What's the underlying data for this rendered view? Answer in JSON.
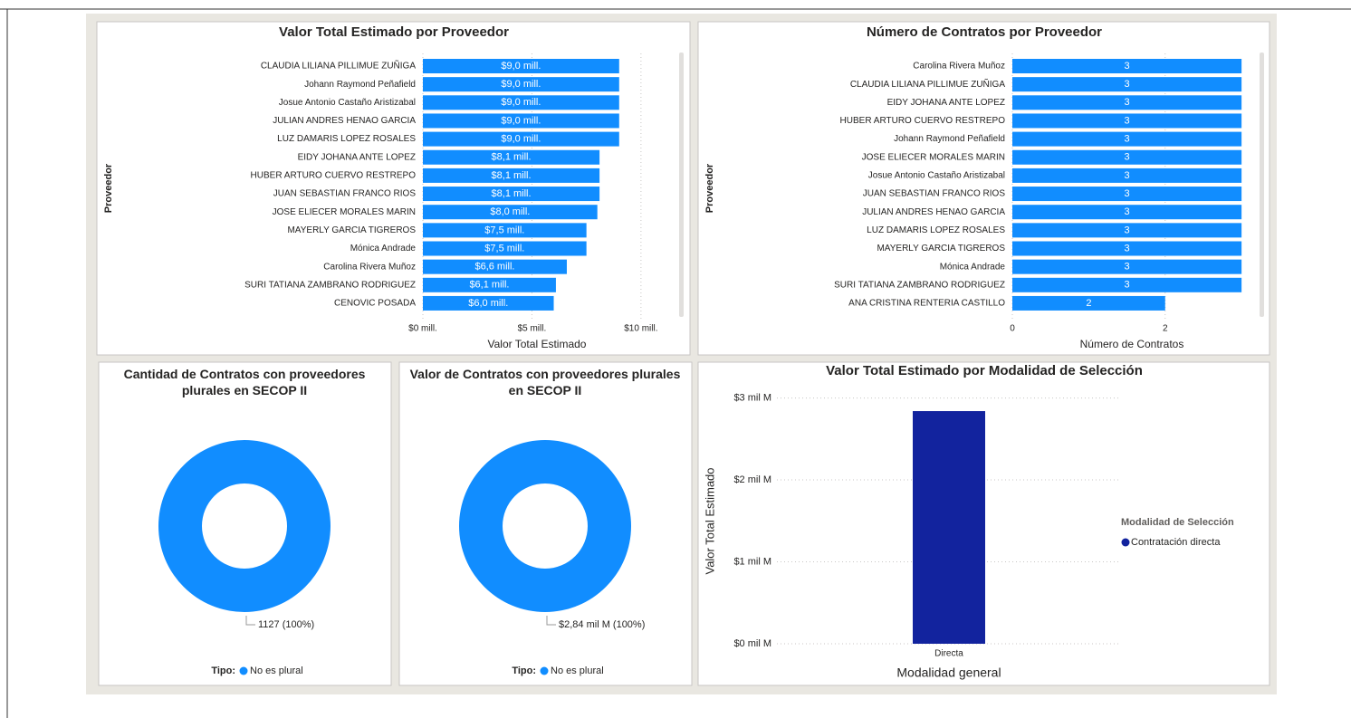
{
  "chart_data": [
    {
      "type": "bar",
      "horizontal": true,
      "title": "Valor Total Estimado por Proveedor",
      "y_label": "Proveedor",
      "x_label": "Valor Total Estimado",
      "categories": [
        "CLAUDIA LILIANA PILLIMUE ZUÑIGA",
        "Johann Raymond Peñafield",
        "Josue Antonio Castaño Aristizabal",
        "JULIAN ANDRES HENAO GARCIA",
        "LUZ DAMARIS LOPEZ ROSALES",
        "EIDY JOHANA ANTE LOPEZ",
        "HUBER ARTURO CUERVO RESTREPO",
        "JUAN SEBASTIAN FRANCO RIOS",
        "JOSE ELIECER MORALES MARIN",
        "MAYERLY GARCIA TIGREROS",
        "Mónica Andrade",
        "Carolina Rivera Muñoz",
        "SURI TATIANA ZAMBRANO RODRIGUEZ",
        "CENOVIC POSADA"
      ],
      "values": [
        9.0,
        9.0,
        9.0,
        9.0,
        9.0,
        8.1,
        8.1,
        8.1,
        8.0,
        7.5,
        7.5,
        6.6,
        6.1,
        6.0
      ],
      "value_labels": [
        "$9,0 mill.",
        "$9,0 mill.",
        "$9,0 mill.",
        "$9,0 mill.",
        "$9,0 mill.",
        "$8,1 mill.",
        "$8,1 mill.",
        "$8,1 mill.",
        "$8,0 mill.",
        "$7,5 mill.",
        "$7,5 mill.",
        "$6,6 mill.",
        "$6,1 mill.",
        "$6,0 mill."
      ],
      "color": "#118dff",
      "xlim": [
        0,
        11.5
      ],
      "xticks": [
        {
          "value": 0,
          "label": "$0 mill."
        },
        {
          "value": 5,
          "label": "$5 mill."
        },
        {
          "value": 10,
          "label": "$10 mill."
        }
      ],
      "grid": true
    },
    {
      "type": "bar",
      "horizontal": true,
      "title": "Número de Contratos por Proveedor",
      "y_label": "Proveedor",
      "x_label": "Número de Contratos",
      "categories": [
        "Carolina Rivera Muñoz",
        "CLAUDIA LILIANA PILLIMUE ZUÑIGA",
        "EIDY JOHANA ANTE LOPEZ",
        "HUBER ARTURO CUERVO RESTREPO",
        "Johann Raymond Peñafield",
        "JOSE ELIECER MORALES MARIN",
        "Josue Antonio Castaño Aristizabal",
        "JUAN SEBASTIAN FRANCO RIOS",
        "JULIAN ANDRES HENAO GARCIA",
        "LUZ DAMARIS LOPEZ ROSALES",
        "MAYERLY GARCIA TIGREROS",
        "Mónica Andrade",
        "SURI TATIANA ZAMBRANO RODRIGUEZ",
        "ANA CRISTINA RENTERIA CASTILLO"
      ],
      "values": [
        3,
        3,
        3,
        3,
        3,
        3,
        3,
        3,
        3,
        3,
        3,
        3,
        3,
        2
      ],
      "color": "#118dff",
      "xlim": [
        0,
        3.2
      ],
      "xticks": [
        0,
        2
      ],
      "grid": true
    },
    {
      "type": "donut",
      "title": "Cantidad de Contratos con proveedores plurales en SECOP II",
      "legend_title": "Tipo:",
      "categories": [
        "No es plural"
      ],
      "values": [
        1127
      ],
      "value_labels": [
        "1127 (100%)"
      ],
      "color": "#118dff"
    },
    {
      "type": "donut",
      "title": "Valor de Contratos con proveedores plurales en SECOP II",
      "legend_title": "Tipo:",
      "categories": [
        "No es plural"
      ],
      "values": [
        2840000000
      ],
      "value_labels": [
        "$2,84 mil M (100%)"
      ],
      "color": "#118dff"
    },
    {
      "type": "bar",
      "title": "Valor Total Estimado por Modalidad de Selección",
      "x_label": "Modalidad general",
      "y_label": "Valor Total Estimado",
      "legend_title": "Modalidad de Selección",
      "categories": [
        "Directa"
      ],
      "series": [
        {
          "name": "Contratación directa",
          "color": "#12239e",
          "values": [
            2.84
          ]
        }
      ],
      "ylim": [
        0,
        3.15
      ],
      "yticks": [
        {
          "value": 0,
          "label": "$0 mil M"
        },
        {
          "value": 1,
          "label": "$1 mil M"
        },
        {
          "value": 2,
          "label": "$2 mil M"
        },
        {
          "value": 3,
          "label": "$3 mil M"
        }
      ],
      "grid": true
    }
  ]
}
